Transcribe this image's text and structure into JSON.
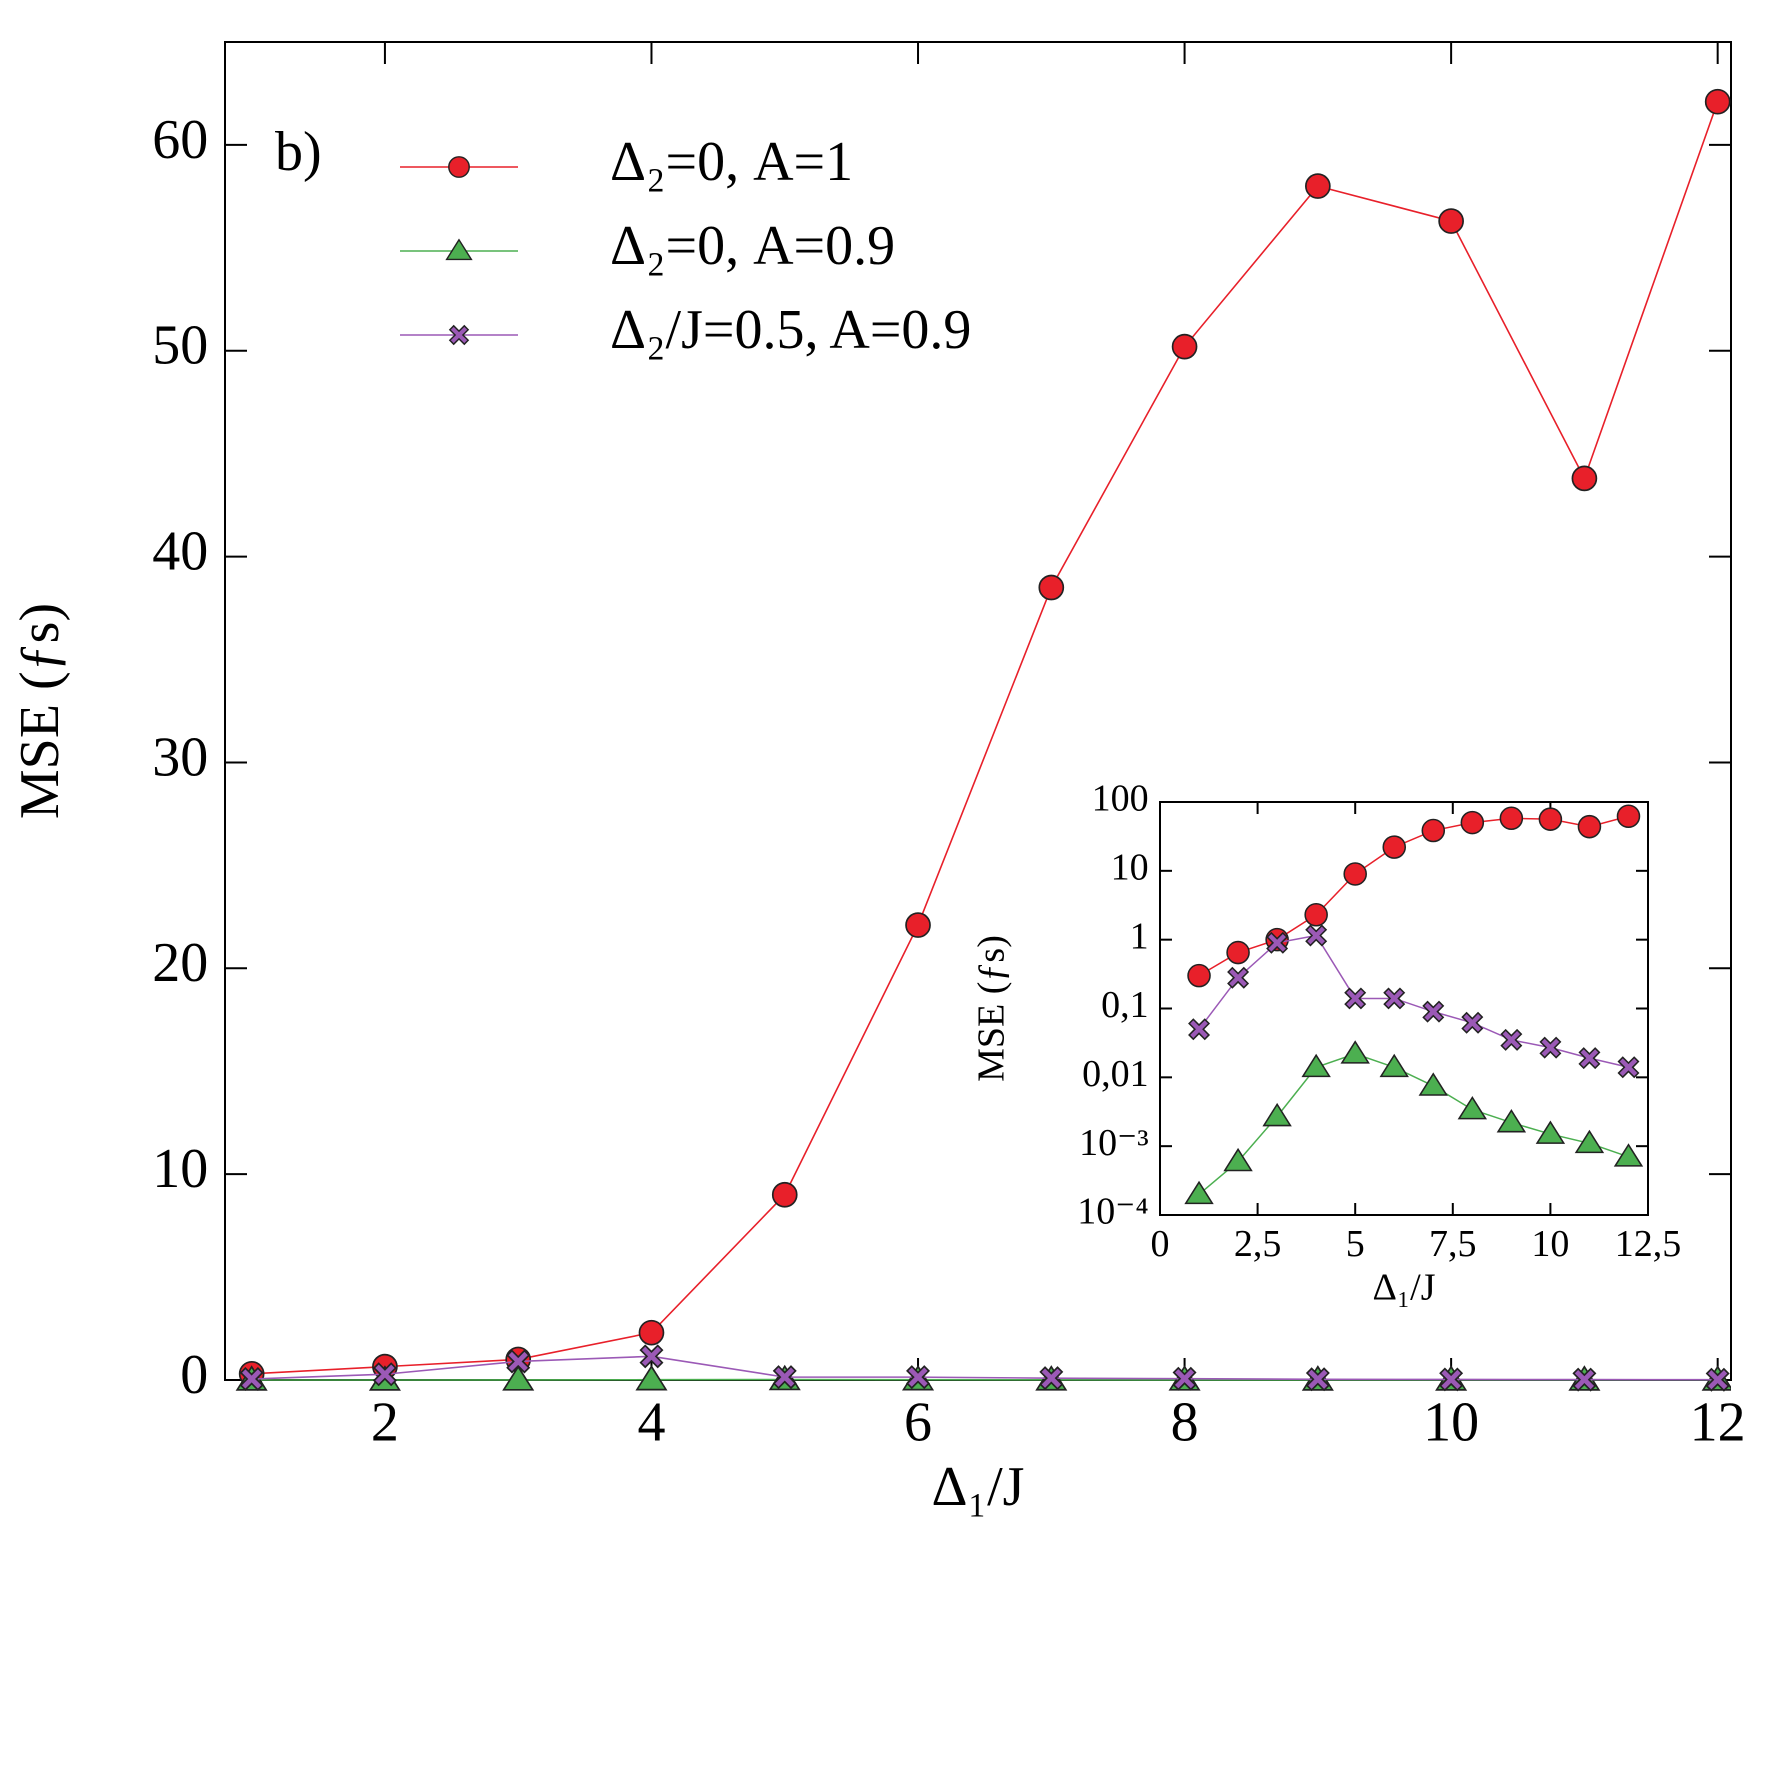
{
  "chart_data": [
    {
      "type": "line",
      "annotation": "b)",
      "xlabel": "Δ₁/J",
      "ylabel": "MSE (ƒs)",
      "xlim": [
        0.8,
        12.1
      ],
      "ylim": [
        0,
        65
      ],
      "xticks": [
        2,
        4,
        6,
        8,
        10,
        12
      ],
      "yticks": [
        0,
        10,
        20,
        30,
        40,
        50,
        60
      ],
      "legend": "upper left",
      "x": [
        1,
        2,
        3,
        4,
        5,
        6,
        7,
        8,
        9,
        10,
        11,
        12
      ],
      "series": [
        {
          "name": "Δ₂=0, A=1",
          "color": "#e8202a",
          "marker": "circle",
          "values": [
            0.3,
            0.65,
            1.0,
            2.3,
            9.0,
            22.1,
            38.5,
            50.2,
            58.0,
            56.3,
            43.8,
            62.1
          ]
        },
        {
          "name": "Δ₂=0, A=0.9",
          "color": "#4caf50",
          "marker": "triangle",
          "values": [
            0.0002,
            0.0006,
            0.0027,
            0.014,
            0.022,
            0.014,
            0.0075,
            0.0034,
            0.0022,
            0.0015,
            0.0011,
            0.0007
          ]
        },
        {
          "name": "Δ₂/J=0.5, A=0.9",
          "color": "#9b59b6",
          "marker": "cross",
          "values": [
            0.05,
            0.28,
            0.9,
            1.15,
            0.14,
            0.14,
            0.09,
            0.062,
            0.035,
            0.027,
            0.019,
            0.014
          ]
        }
      ]
    },
    {
      "type": "line",
      "xlabel": "Δ₁/J",
      "ylabel": "MSE (ƒs)",
      "log_y": true,
      "xlim": [
        0,
        12.5
      ],
      "ylim": [
        0.0001,
        100
      ],
      "xticks": [
        0,
        {
          "value": 2.5,
          "label": "2,5"
        },
        5,
        {
          "value": 7.5,
          "label": "7,5"
        },
        10,
        {
          "value": 12.5,
          "label": "12,5"
        }
      ],
      "yticks": [
        {
          "value": 0.0001,
          "label": "10⁻⁴"
        },
        {
          "value": 0.001,
          "label": "10⁻³"
        },
        {
          "value": 0.01,
          "label": "0,01"
        },
        {
          "value": 0.1,
          "label": "0,1"
        },
        1,
        10,
        100
      ],
      "x": [
        1,
        2,
        3,
        4,
        5,
        6,
        7,
        8,
        9,
        10,
        11,
        12
      ],
      "series": [
        {
          "color": "#e8202a",
          "marker": "circle",
          "values": [
            0.3,
            0.65,
            1.0,
            2.3,
            9.0,
            22.1,
            38.5,
            50.2,
            58.0,
            56.3,
            43.8,
            62.1
          ]
        },
        {
          "color": "#4caf50",
          "marker": "triangle",
          "values": [
            0.0002,
            0.0006,
            0.0027,
            0.014,
            0.022,
            0.014,
            0.0075,
            0.0034,
            0.0022,
            0.0015,
            0.0011,
            0.0007
          ]
        },
        {
          "color": "#9b59b6",
          "marker": "cross",
          "values": [
            0.05,
            0.28,
            0.9,
            1.15,
            0.14,
            0.14,
            0.09,
            0.062,
            0.035,
            0.027,
            0.019,
            0.014
          ]
        }
      ]
    }
  ]
}
